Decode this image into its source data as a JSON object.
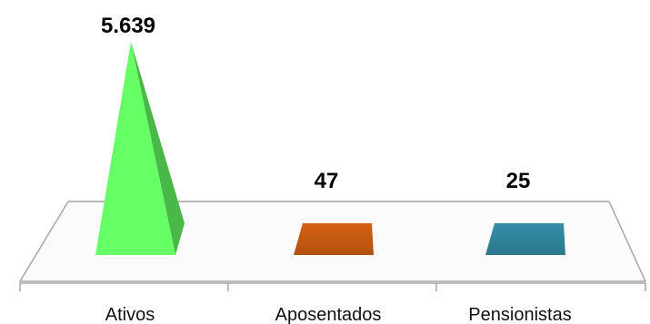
{
  "chart_data": {
    "type": "bar",
    "style": "3d-pyramid",
    "categories": [
      "Ativos",
      "Aposentados",
      "Pensionistas"
    ],
    "values": [
      5639,
      47,
      25
    ],
    "value_labels": [
      "5.639",
      "47",
      "25"
    ],
    "colors": [
      "#66ff66",
      "#c55a11",
      "#31849b"
    ],
    "title": "",
    "xlabel": "",
    "ylabel": "",
    "ylim": [
      0,
      5639
    ],
    "grid": false,
    "legend": "none"
  }
}
